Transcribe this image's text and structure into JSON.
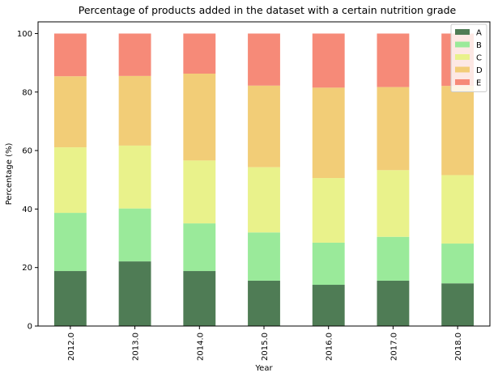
{
  "chart_data": {
    "type": "bar",
    "stacked": true,
    "title": "Percentage of products added in the dataset with a certain nutrition grade",
    "xlabel": "Year",
    "ylabel": "Percentage (%)",
    "ylim": [
      0,
      104
    ],
    "yticks": [
      "0",
      "20",
      "40",
      "60",
      "80",
      "100"
    ],
    "grid": false,
    "legend_position": "top-right",
    "categories": [
      "2012.0",
      "2013.0",
      "2014.0",
      "2015.0",
      "2016.0",
      "2017.0",
      "2018.0"
    ],
    "series": [
      {
        "name": "A",
        "color": "#4f7c55",
        "values": [
          18.8,
          22.1,
          18.8,
          15.5,
          14.1,
          15.5,
          14.6
        ]
      },
      {
        "name": "B",
        "color": "#9aea9a",
        "values": [
          19.9,
          18.1,
          16.3,
          16.5,
          14.4,
          15.0,
          13.6
        ]
      },
      {
        "name": "C",
        "color": "#e9f28b",
        "values": [
          22.4,
          21.5,
          21.5,
          22.3,
          22.1,
          22.8,
          23.4
        ]
      },
      {
        "name": "D",
        "color": "#f2cd77",
        "values": [
          24.3,
          23.8,
          29.7,
          27.9,
          30.9,
          28.4,
          30.5
        ]
      },
      {
        "name": "E",
        "color": "#f68a78",
        "values": [
          14.6,
          14.5,
          13.7,
          17.8,
          18.5,
          18.3,
          17.9
        ]
      }
    ]
  }
}
